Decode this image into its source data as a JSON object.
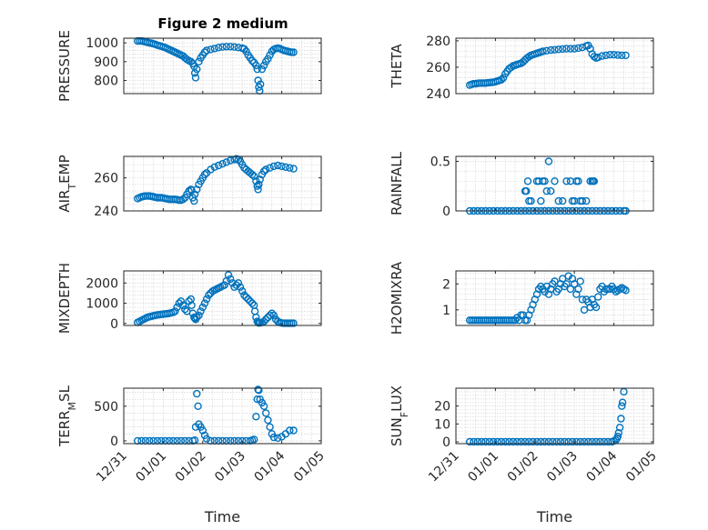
{
  "figure_title": "Figure 2 medium",
  "chart_data": [
    {
      "type": "scatter",
      "ylabel": "PRESSURE",
      "title": "Figure 2 medium",
      "ylim": [
        730,
        1025
      ],
      "yticks": [
        800,
        900,
        1000
      ],
      "grid": true,
      "color": "#0072BD",
      "x": [
        0.35,
        0.4,
        0.45,
        0.5,
        0.55,
        0.6,
        0.65,
        0.7,
        0.75,
        0.8,
        0.85,
        0.9,
        0.95,
        1.0,
        1.05,
        1.1,
        1.15,
        1.2,
        1.25,
        1.3,
        1.35,
        1.4,
        1.45,
        1.5,
        1.55,
        1.6,
        1.65,
        1.7,
        1.75,
        1.78,
        1.8,
        1.82,
        1.85,
        1.9,
        1.95,
        2.0,
        2.05,
        2.1,
        2.2,
        2.3,
        2.4,
        2.5,
        2.6,
        2.7,
        2.8,
        2.9,
        3.0,
        3.05,
        3.1,
        3.15,
        3.2,
        3.25,
        3.3,
        3.35,
        3.38,
        3.4,
        3.42,
        3.44,
        3.46,
        3.5,
        3.55,
        3.6,
        3.65,
        3.7,
        3.75,
        3.8,
        3.85,
        3.9,
        3.95,
        4.0,
        4.05,
        4.1,
        4.15,
        4.2,
        4.25,
        4.3
      ],
      "y": [
        1010,
        1010,
        1010,
        1008,
        1005,
        1003,
        1000,
        998,
        995,
        992,
        988,
        985,
        982,
        978,
        975,
        970,
        965,
        960,
        955,
        950,
        945,
        940,
        935,
        930,
        920,
        912,
        905,
        900,
        890,
        875,
        840,
        815,
        860,
        900,
        920,
        935,
        950,
        960,
        965,
        970,
        975,
        978,
        980,
        980,
        978,
        975,
        972,
        968,
        955,
        935,
        920,
        905,
        895,
        880,
        860,
        800,
        765,
        745,
        780,
        860,
        880,
        900,
        915,
        935,
        955,
        965,
        970,
        972,
        970,
        965,
        960,
        958,
        955,
        952,
        950,
        950
      ]
    },
    {
      "type": "scatter",
      "ylabel": "THETA",
      "ylim": [
        240,
        282
      ],
      "yticks": [
        240,
        260,
        280
      ],
      "grid": true,
      "color": "#0072BD",
      "x": [
        0.35,
        0.4,
        0.45,
        0.5,
        0.55,
        0.6,
        0.65,
        0.7,
        0.75,
        0.8,
        0.85,
        0.9,
        0.95,
        1.0,
        1.05,
        1.1,
        1.15,
        1.2,
        1.25,
        1.3,
        1.35,
        1.4,
        1.45,
        1.5,
        1.55,
        1.6,
        1.65,
        1.7,
        1.75,
        1.8,
        1.85,
        1.9,
        1.95,
        2.0,
        2.05,
        2.1,
        2.15,
        2.2,
        2.3,
        2.4,
        2.5,
        2.6,
        2.7,
        2.8,
        2.9,
        3.0,
        3.1,
        3.2,
        3.3,
        3.35,
        3.4,
        3.45,
        3.5,
        3.55,
        3.6,
        3.7,
        3.8,
        3.9,
        4.0,
        4.1,
        4.2,
        4.3
      ],
      "y": [
        246.5,
        247,
        247.5,
        247.5,
        247.8,
        248,
        248,
        248,
        248,
        248.2,
        248.3,
        248.5,
        248.7,
        249,
        249.5,
        250,
        250.5,
        252,
        255,
        257,
        259,
        260,
        261,
        261.5,
        262,
        262.5,
        263,
        264,
        265.5,
        267,
        268,
        269,
        269.5,
        270,
        270.5,
        271,
        271.5,
        272,
        272.5,
        273,
        273.2,
        273.5,
        273.8,
        274,
        274,
        274,
        274.5,
        275,
        276,
        276.5,
        274,
        270,
        268,
        267,
        267.5,
        268.5,
        269,
        269.5,
        269.5,
        269.2,
        269,
        269
      ]
    },
    {
      "type": "scatter",
      "ylabel": "AIR_TEMP",
      "ylim": [
        240,
        273
      ],
      "yticks": [
        240,
        260
      ],
      "grid": true,
      "color": "#0072BD",
      "x": [
        0.35,
        0.4,
        0.45,
        0.5,
        0.55,
        0.6,
        0.65,
        0.7,
        0.75,
        0.8,
        0.85,
        0.9,
        0.95,
        1.0,
        1.05,
        1.1,
        1.15,
        1.2,
        1.25,
        1.3,
        1.35,
        1.4,
        1.45,
        1.5,
        1.55,
        1.6,
        1.65,
        1.7,
        1.72,
        1.75,
        1.78,
        1.8,
        1.85,
        1.9,
        1.95,
        2.0,
        2.05,
        2.1,
        2.2,
        2.3,
        2.4,
        2.5,
        2.6,
        2.7,
        2.8,
        2.85,
        2.9,
        2.95,
        3.0,
        3.05,
        3.1,
        3.15,
        3.2,
        3.25,
        3.3,
        3.35,
        3.38,
        3.4,
        3.42,
        3.45,
        3.5,
        3.55,
        3.6,
        3.7,
        3.8,
        3.9,
        4.0,
        4.1,
        4.2,
        4.3
      ],
      "y": [
        247.5,
        248,
        248.5,
        248.8,
        249,
        249,
        249,
        248.8,
        248.5,
        248.3,
        248,
        248,
        248,
        247.8,
        247.5,
        247.3,
        247,
        247,
        247,
        247,
        246.8,
        246.5,
        246.5,
        247,
        248,
        250,
        252,
        253,
        252.5,
        248,
        246,
        250,
        253,
        256,
        258,
        260,
        262,
        263,
        265,
        266.5,
        267.5,
        268.5,
        269.5,
        270.5,
        271,
        271.5,
        271,
        270,
        268,
        266,
        265,
        264,
        263,
        262,
        261,
        258,
        255,
        253,
        256,
        259,
        262,
        264,
        265,
        266,
        267,
        267.5,
        267,
        266.5,
        266,
        265.5
      ]
    },
    {
      "type": "scatter",
      "ylabel": "RAINFALL",
      "ylim": [
        0,
        0.55
      ],
      "yticks": [
        0,
        0.5
      ],
      "grid": true,
      "color": "#0072BD",
      "x": [
        0.35,
        0.45,
        0.55,
        0.65,
        0.75,
        0.85,
        0.95,
        1.05,
        1.15,
        1.25,
        1.35,
        1.45,
        1.55,
        1.65,
        1.75,
        1.85,
        1.95,
        2.05,
        2.15,
        2.25,
        2.35,
        2.45,
        2.55,
        2.65,
        2.75,
        2.85,
        2.95,
        3.05,
        3.15,
        3.25,
        3.35,
        3.45,
        3.55,
        3.65,
        3.75,
        3.85,
        3.95,
        4.05,
        4.15,
        4.25,
        4.3,
        1.75,
        1.78,
        1.82,
        1.85,
        1.9,
        2.05,
        2.1,
        2.15,
        2.2,
        2.25,
        2.3,
        2.35,
        2.4,
        2.5,
        2.6,
        2.7,
        2.8,
        2.9,
        2.95,
        3.0,
        3.05,
        3.1,
        3.15,
        3.2,
        3.3,
        3.4,
        3.45,
        3.48,
        3.5
      ],
      "y": [
        0,
        0,
        0,
        0,
        0,
        0,
        0,
        0,
        0,
        0,
        0,
        0,
        0,
        0,
        0,
        0,
        0,
        0,
        0,
        0,
        0,
        0,
        0,
        0,
        0,
        0,
        0,
        0,
        0,
        0,
        0,
        0,
        0,
        0,
        0,
        0,
        0,
        0,
        0,
        0,
        0,
        0.2,
        0.2,
        0.3,
        0.1,
        0.1,
        0.3,
        0.3,
        0.1,
        0.3,
        0.3,
        0.2,
        0.5,
        0.2,
        0.3,
        0.1,
        0.1,
        0.3,
        0.3,
        0.1,
        0.1,
        0.3,
        0.3,
        0.1,
        0.1,
        0.1,
        0.3,
        0.3,
        0.3,
        0.3
      ]
    },
    {
      "type": "scatter",
      "ylabel": "MIXDEPTH",
      "ylim": [
        -100,
        2600
      ],
      "yticks": [
        0,
        1000,
        2000
      ],
      "grid": true,
      "color": "#0072BD",
      "x": [
        0.35,
        0.4,
        0.45,
        0.5,
        0.55,
        0.6,
        0.65,
        0.7,
        0.75,
        0.8,
        0.85,
        0.9,
        0.95,
        1.0,
        1.05,
        1.1,
        1.15,
        1.2,
        1.25,
        1.3,
        1.35,
        1.4,
        1.45,
        1.5,
        1.55,
        1.6,
        1.65,
        1.7,
        1.72,
        1.75,
        1.78,
        1.8,
        1.82,
        1.85,
        1.9,
        1.95,
        2.0,
        2.05,
        2.1,
        2.15,
        2.2,
        2.25,
        2.3,
        2.35,
        2.4,
        2.45,
        2.5,
        2.55,
        2.6,
        2.65,
        2.7,
        2.75,
        2.8,
        2.85,
        2.9,
        2.95,
        3.0,
        3.05,
        3.1,
        3.15,
        3.2,
        3.25,
        3.3,
        3.32,
        3.35,
        3.38,
        3.4,
        3.42,
        3.45,
        3.5,
        3.55,
        3.6,
        3.65,
        3.7,
        3.75,
        3.8,
        3.85,
        3.9,
        3.95,
        4.0,
        4.05,
        4.1,
        4.15,
        4.2,
        4.25,
        4.3
      ],
      "y": [
        50,
        100,
        150,
        200,
        250,
        300,
        330,
        350,
        380,
        400,
        420,
        430,
        450,
        460,
        470,
        480,
        500,
        520,
        550,
        600,
        800,
        1000,
        1100,
        900,
        700,
        600,
        1100,
        1200,
        900,
        500,
        300,
        250,
        200,
        300,
        400,
        600,
        800,
        1000,
        1200,
        1400,
        1500,
        1600,
        1650,
        1700,
        1750,
        1800,
        1850,
        1900,
        2100,
        2400,
        2200,
        2000,
        1800,
        1900,
        2000,
        1800,
        1600,
        1400,
        1300,
        1200,
        1100,
        1000,
        900,
        600,
        300,
        100,
        50,
        20,
        30,
        50,
        100,
        200,
        300,
        400,
        500,
        400,
        200,
        100,
        50,
        20,
        10,
        10,
        10,
        10,
        10,
        10
      ]
    },
    {
      "type": "scatter",
      "ylabel": "H2OMIXRA",
      "ylim": [
        0.4,
        2.5
      ],
      "yticks": [
        1,
        2
      ],
      "grid": true,
      "color": "#0072BD",
      "x": [
        0.35,
        0.4,
        0.45,
        0.5,
        0.55,
        0.6,
        0.65,
        0.7,
        0.75,
        0.8,
        0.85,
        0.9,
        0.95,
        1.0,
        1.05,
        1.1,
        1.15,
        1.2,
        1.25,
        1.3,
        1.35,
        1.4,
        1.45,
        1.5,
        1.55,
        1.6,
        1.65,
        1.7,
        1.75,
        1.8,
        1.85,
        1.9,
        1.95,
        2.0,
        2.05,
        2.1,
        2.15,
        2.2,
        2.25,
        2.3,
        2.35,
        2.4,
        2.45,
        2.5,
        2.55,
        2.6,
        2.65,
        2.7,
        2.75,
        2.8,
        2.85,
        2.9,
        2.95,
        3.0,
        3.05,
        3.1,
        3.15,
        3.2,
        3.25,
        3.3,
        3.35,
        3.4,
        3.45,
        3.5,
        3.55,
        3.6,
        3.65,
        3.7,
        3.75,
        3.8,
        3.85,
        3.9,
        3.95,
        4.0,
        4.05,
        4.1,
        4.15,
        4.2,
        4.25,
        4.3
      ],
      "y": [
        0.6,
        0.6,
        0.6,
        0.6,
        0.6,
        0.6,
        0.6,
        0.6,
        0.6,
        0.6,
        0.6,
        0.6,
        0.6,
        0.6,
        0.6,
        0.6,
        0.6,
        0.6,
        0.6,
        0.6,
        0.6,
        0.6,
        0.6,
        0.6,
        0.7,
        0.6,
        0.8,
        0.8,
        0.6,
        0.6,
        0.8,
        1.0,
        1.2,
        1.4,
        1.6,
        1.8,
        1.9,
        1.8,
        1.7,
        1.9,
        1.6,
        1.8,
        2.0,
        2.1,
        1.7,
        1.8,
        2.0,
        2.2,
        1.9,
        2.0,
        2.3,
        1.8,
        2.2,
        2.0,
        1.6,
        1.8,
        2.1,
        1.4,
        1.0,
        1.4,
        1.3,
        1.1,
        1.4,
        1.2,
        1.1,
        1.5,
        1.8,
        1.9,
        1.7,
        1.8,
        1.8,
        1.8,
        1.9,
        1.8,
        1.7,
        1.75,
        1.8,
        1.85,
        1.8,
        1.75
      ]
    },
    {
      "type": "scatter",
      "ylabel": "TERR_MSL",
      "ylim": [
        -40,
        760
      ],
      "yticks": [
        0,
        500
      ],
      "grid": true,
      "color": "#0072BD",
      "x": [
        0.35,
        0.45,
        0.55,
        0.65,
        0.75,
        0.85,
        0.95,
        1.05,
        1.15,
        1.25,
        1.35,
        1.45,
        1.55,
        1.65,
        1.75,
        1.8,
        1.82,
        1.85,
        1.88,
        1.9,
        1.95,
        2.0,
        2.05,
        2.1,
        2.2,
        2.3,
        2.4,
        2.5,
        2.6,
        2.7,
        2.8,
        2.9,
        3.0,
        3.1,
        3.2,
        3.25,
        3.3,
        3.35,
        3.38,
        3.4,
        3.42,
        3.45,
        3.5,
        3.55,
        3.6,
        3.65,
        3.7,
        3.75,
        3.8,
        3.9,
        4.0,
        4.1,
        4.2,
        4.3
      ],
      "y": [
        0,
        0,
        0,
        0,
        0,
        0,
        0,
        0,
        0,
        0,
        0,
        0,
        0,
        0,
        0,
        10,
        200,
        680,
        500,
        240,
        200,
        150,
        80,
        30,
        0,
        0,
        0,
        0,
        0,
        0,
        0,
        0,
        0,
        0,
        0,
        10,
        20,
        350,
        600,
        740,
        730,
        600,
        550,
        500,
        400,
        300,
        200,
        100,
        50,
        40,
        60,
        100,
        150,
        150
      ]
    },
    {
      "type": "scatter",
      "ylabel": "SUN_FLUX",
      "ylim": [
        -1,
        30
      ],
      "yticks": [
        0,
        10,
        20
      ],
      "grid": true,
      "color": "#0072BD",
      "x": [
        0.35,
        0.45,
        0.55,
        0.65,
        0.75,
        0.85,
        0.95,
        1.05,
        1.15,
        1.25,
        1.35,
        1.45,
        1.55,
        1.65,
        1.75,
        1.85,
        1.95,
        2.05,
        2.15,
        2.25,
        2.35,
        2.45,
        2.55,
        2.65,
        2.75,
        2.85,
        2.95,
        3.05,
        3.15,
        3.25,
        3.35,
        3.45,
        3.55,
        3.65,
        3.75,
        3.85,
        3.95,
        4.0,
        4.05,
        4.08,
        4.1,
        4.12,
        4.15,
        4.18,
        4.2,
        4.22,
        4.25
      ],
      "y": [
        0,
        0,
        0,
        0,
        0,
        0,
        0,
        0,
        0,
        0,
        0,
        0,
        0,
        0,
        0,
        0,
        0,
        0,
        0,
        0,
        0,
        0,
        0,
        0,
        0,
        0,
        0,
        0,
        0,
        0,
        0,
        0,
        0,
        0,
        0,
        0,
        0,
        0.5,
        1,
        2,
        3,
        5,
        8,
        13,
        20,
        22,
        28
      ]
    }
  ],
  "shared_x": {
    "label": "Time",
    "ticks": [
      0,
      1,
      2,
      3,
      4,
      5
    ],
    "tick_labels": [
      "12/31",
      "01/01",
      "01/02",
      "01/03",
      "01/04",
      "01/05"
    ],
    "xlim": [
      0,
      5
    ]
  }
}
